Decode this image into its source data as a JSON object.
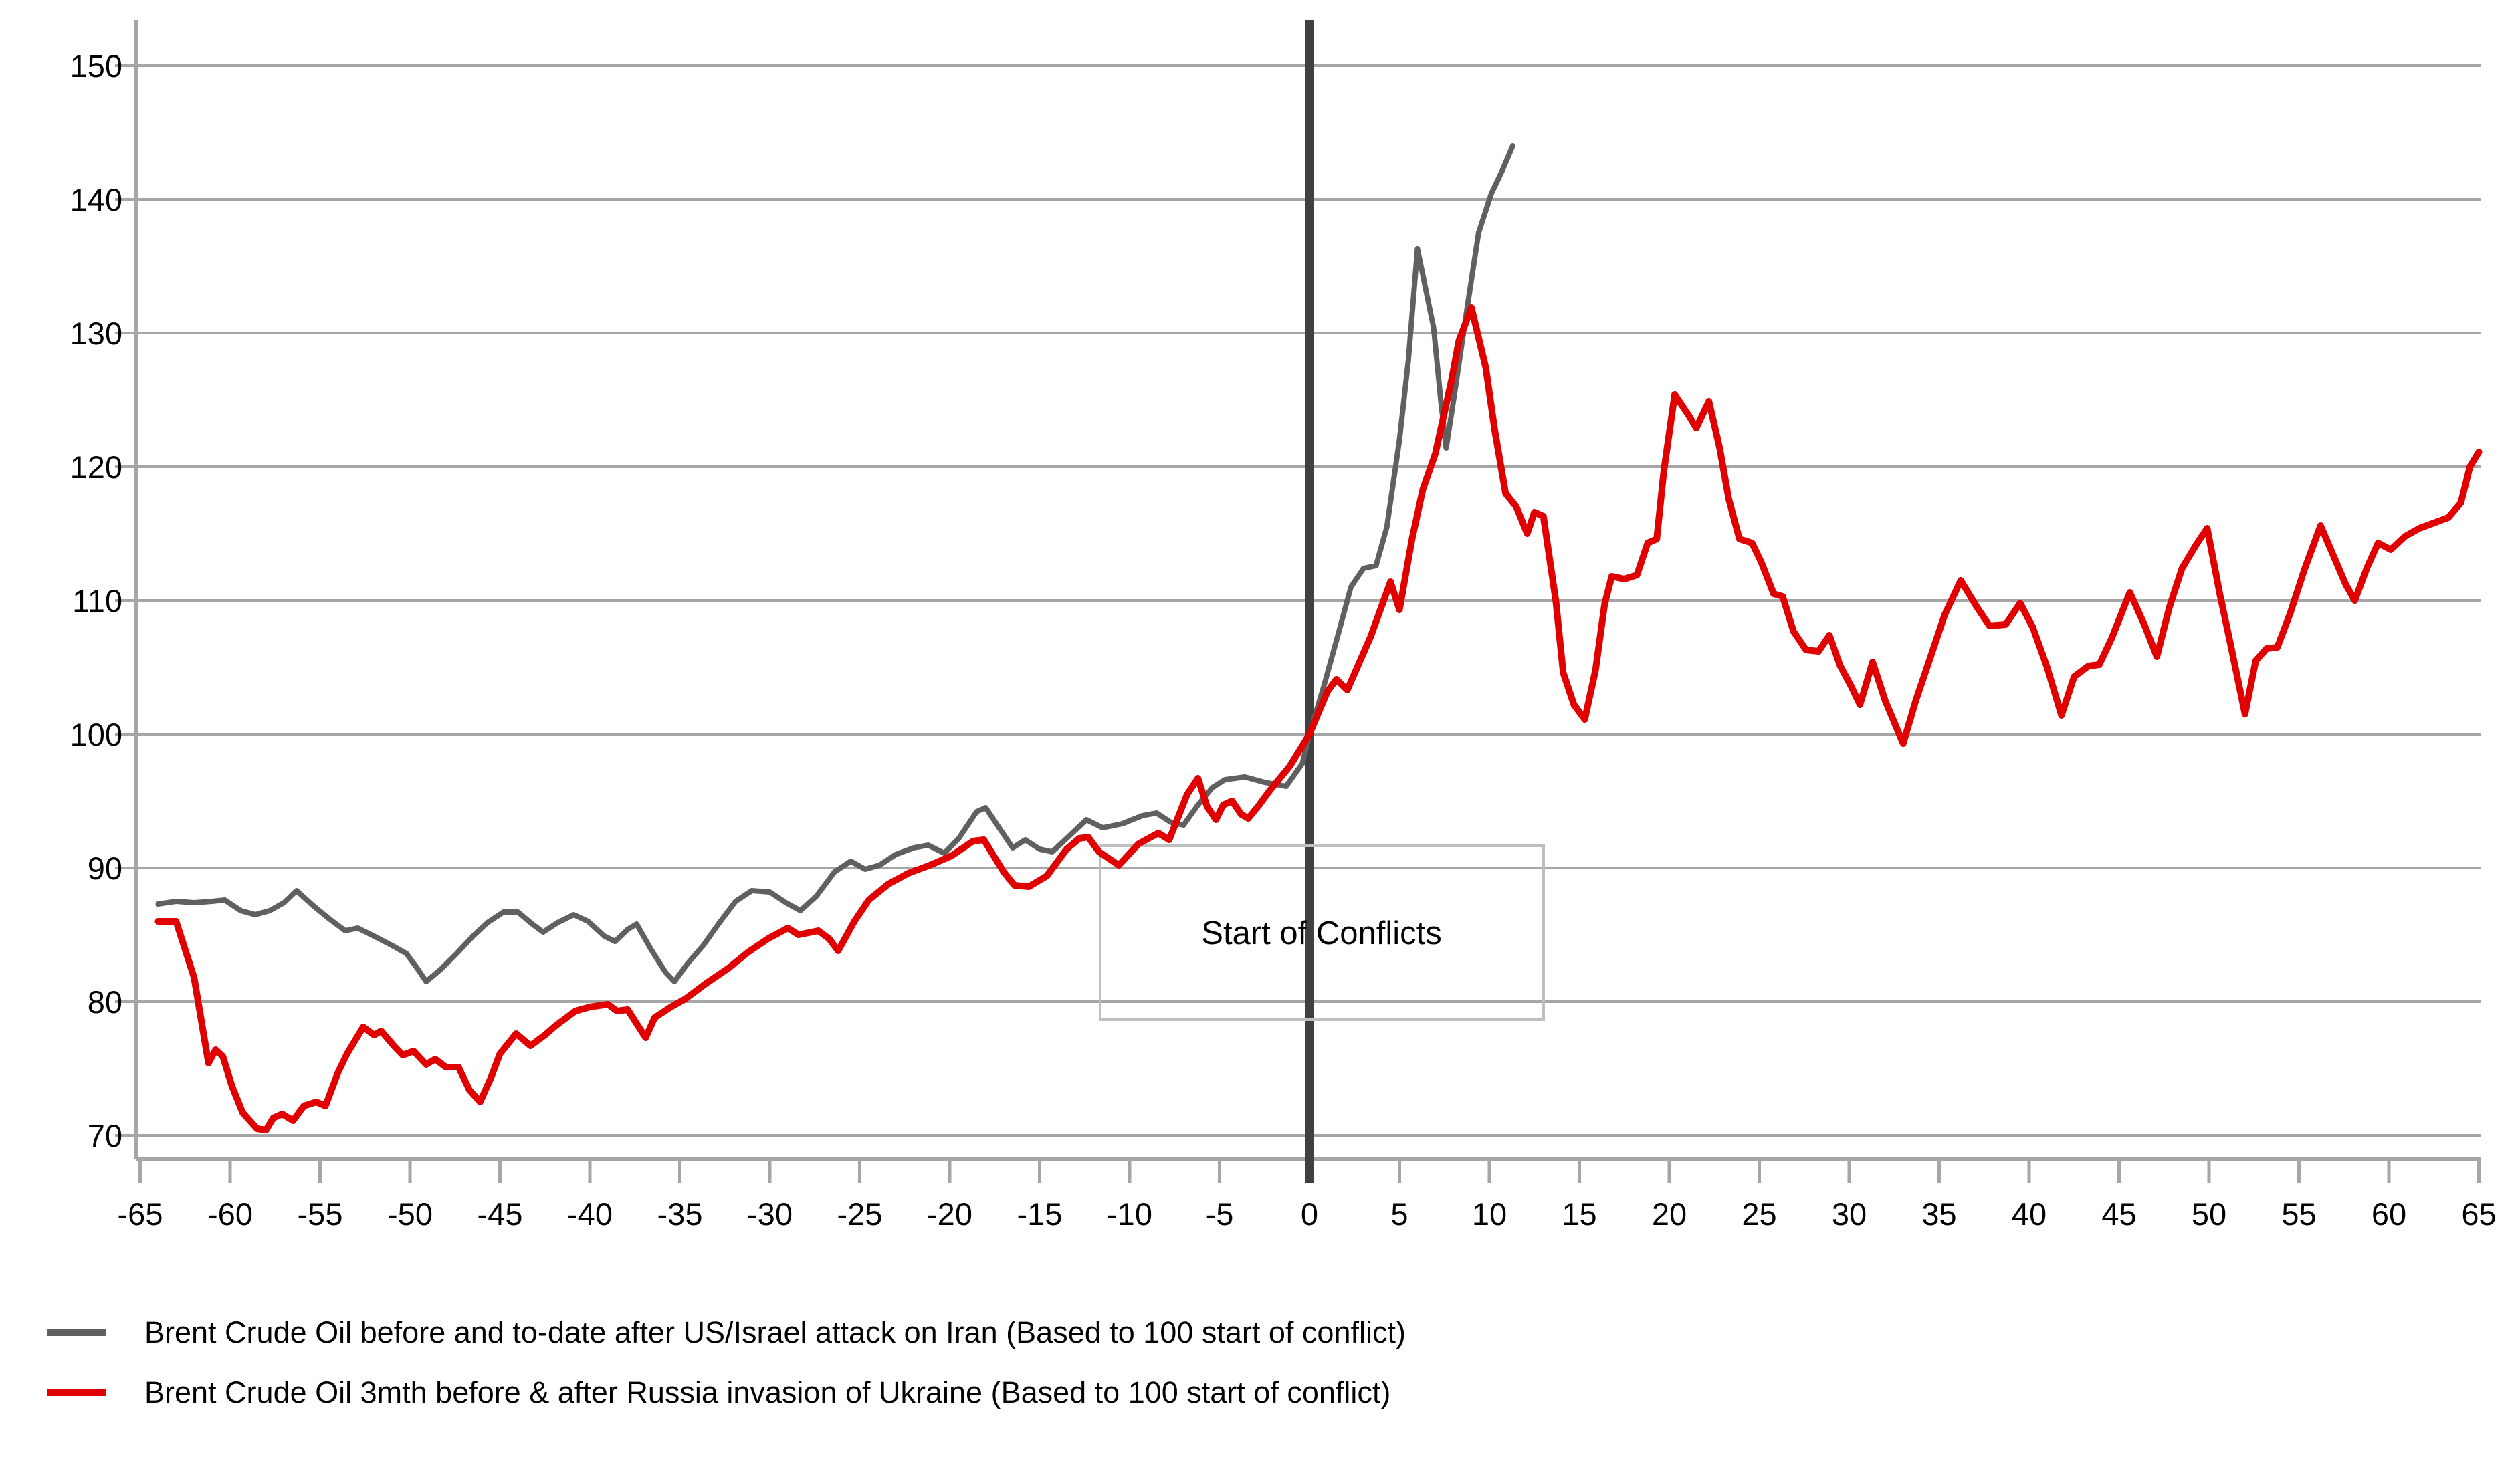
{
  "chart_data": {
    "type": "line",
    "title": "",
    "annotation": "Start of Conflicts",
    "x_ticks": [
      -65,
      -60,
      -55,
      -50,
      -45,
      -40,
      -35,
      -30,
      -25,
      -20,
      -15,
      -10,
      -5,
      0,
      5,
      10,
      15,
      20,
      25,
      30,
      35,
      40,
      45,
      50,
      55,
      60,
      65
    ],
    "y_ticks": [
      150,
      140,
      130,
      120,
      110,
      100,
      90,
      80,
      70
    ],
    "ylim": [
      70,
      150
    ],
    "xlim": [
      -65,
      65
    ],
    "grid": true,
    "legend_position": "bottom-left",
    "grid_color": "#a6a6a6",
    "event_line_color": "#404040",
    "annotation_border_color": "#bfbfbf",
    "series": [
      {
        "name": "Brent Crude Oil before and to-date after US/Israel attack on Iran (Based to 100 start of conflict)",
        "color": "#606060",
        "points": [
          [
            -64,
            87.3
          ],
          [
            -63,
            87.5
          ],
          [
            -62,
            87.4
          ],
          [
            -61,
            87.5
          ],
          [
            -60.3,
            87.6
          ],
          [
            -59.4,
            86.8
          ],
          [
            -58.6,
            86.5
          ],
          [
            -57.8,
            86.8
          ],
          [
            -57,
            87.4
          ],
          [
            -56.3,
            88.3
          ],
          [
            -55.4,
            87.2
          ],
          [
            -54.5,
            86.2
          ],
          [
            -53.6,
            85.3
          ],
          [
            -52.9,
            85.5
          ],
          [
            -52,
            84.9
          ],
          [
            -51,
            84.2
          ],
          [
            -50.2,
            83.6
          ],
          [
            -49.6,
            82.5
          ],
          [
            -49.1,
            81.5
          ],
          [
            -48.3,
            82.4
          ],
          [
            -47.4,
            83.6
          ],
          [
            -46.5,
            84.9
          ],
          [
            -45.7,
            85.9
          ],
          [
            -44.8,
            86.7
          ],
          [
            -44,
            86.7
          ],
          [
            -43.2,
            85.8
          ],
          [
            -42.6,
            85.2
          ],
          [
            -41.8,
            85.9
          ],
          [
            -40.9,
            86.5
          ],
          [
            -40.1,
            86
          ],
          [
            -39.2,
            84.9
          ],
          [
            -38.6,
            84.5
          ],
          [
            -37.9,
            85.4
          ],
          [
            -37.4,
            85.8
          ],
          [
            -36.6,
            83.9
          ],
          [
            -35.8,
            82.2
          ],
          [
            -35.3,
            81.5
          ],
          [
            -34.6,
            82.8
          ],
          [
            -33.7,
            84.2
          ],
          [
            -32.8,
            85.9
          ],
          [
            -31.9,
            87.5
          ],
          [
            -31,
            88.3
          ],
          [
            -30,
            88.2
          ],
          [
            -29.1,
            87.4
          ],
          [
            -28.3,
            86.8
          ],
          [
            -27.4,
            87.9
          ],
          [
            -26.4,
            89.7
          ],
          [
            -25.5,
            90.5
          ],
          [
            -24.7,
            89.9
          ],
          [
            -23.9,
            90.2
          ],
          [
            -23,
            91
          ],
          [
            -22,
            91.5
          ],
          [
            -21.2,
            91.7
          ],
          [
            -20.3,
            91.1
          ],
          [
            -19.5,
            92.2
          ],
          [
            -18.5,
            94.2
          ],
          [
            -18,
            94.5
          ],
          [
            -17.3,
            93.1
          ],
          [
            -16.5,
            91.5
          ],
          [
            -15.8,
            92.1
          ],
          [
            -15,
            91.4
          ],
          [
            -14.3,
            91.2
          ],
          [
            -13.5,
            92.2
          ],
          [
            -12.4,
            93.6
          ],
          [
            -11.5,
            93
          ],
          [
            -10.4,
            93.3
          ],
          [
            -9.3,
            93.9
          ],
          [
            -8.5,
            94.1
          ],
          [
            -7.7,
            93.4
          ],
          [
            -7,
            93.2
          ],
          [
            -6.2,
            94.7
          ],
          [
            -5.4,
            96
          ],
          [
            -4.7,
            96.6
          ],
          [
            -3.6,
            96.8
          ],
          [
            -2.5,
            96.4
          ],
          [
            -1.3,
            96.1
          ],
          [
            -0.4,
            97.8
          ],
          [
            0,
            100
          ],
          [
            0.8,
            103.6
          ],
          [
            1.6,
            107.5
          ],
          [
            2.3,
            111
          ],
          [
            3,
            112.4
          ],
          [
            3.7,
            112.6
          ],
          [
            4.3,
            115.5
          ],
          [
            5,
            122
          ],
          [
            5.5,
            128
          ],
          [
            6,
            136.3
          ],
          [
            6.9,
            130.4
          ],
          [
            7.3,
            124.9
          ],
          [
            7.6,
            121.4
          ],
          [
            8.1,
            125.8
          ],
          [
            8.8,
            132.2
          ],
          [
            9.4,
            137.5
          ],
          [
            10.1,
            140.4
          ],
          [
            10.7,
            142.1
          ],
          [
            11.3,
            144
          ]
        ]
      },
      {
        "name": "Brent Crude Oil 3mth before & after Russia invasion of Ukraine (Based to 100 start of conflict)",
        "color": "#e10000",
        "points": [
          [
            -64,
            86
          ],
          [
            -63,
            86
          ],
          [
            -62,
            81.8
          ],
          [
            -61.2,
            75.4
          ],
          [
            -60.8,
            76.4
          ],
          [
            -60.4,
            75.9
          ],
          [
            -59.9,
            73.7
          ],
          [
            -59.3,
            71.7
          ],
          [
            -58.5,
            70.5
          ],
          [
            -58,
            70.4
          ],
          [
            -57.6,
            71.3
          ],
          [
            -57.1,
            71.6
          ],
          [
            -56.5,
            71.1
          ],
          [
            -55.9,
            72.2
          ],
          [
            -55.2,
            72.5
          ],
          [
            -54.7,
            72.2
          ],
          [
            -54,
            74.7
          ],
          [
            -53.5,
            76.1
          ],
          [
            -52.6,
            78.1
          ],
          [
            -52,
            77.5
          ],
          [
            -51.6,
            77.8
          ],
          [
            -50.9,
            76.7
          ],
          [
            -50.4,
            76
          ],
          [
            -49.8,
            76.3
          ],
          [
            -49.1,
            75.3
          ],
          [
            -48.6,
            75.7
          ],
          [
            -48,
            75.1
          ],
          [
            -47.3,
            75.1
          ],
          [
            -46.7,
            73.4
          ],
          [
            -46.1,
            72.5
          ],
          [
            -45.5,
            74.3
          ],
          [
            -45,
            76.1
          ],
          [
            -44.1,
            77.6
          ],
          [
            -43.3,
            76.7
          ],
          [
            -42.5,
            77.5
          ],
          [
            -41.9,
            78.2
          ],
          [
            -40.8,
            79.3
          ],
          [
            -40,
            79.6
          ],
          [
            -39,
            79.8
          ],
          [
            -38.5,
            79.3
          ],
          [
            -37.9,
            79.4
          ],
          [
            -36.9,
            77.3
          ],
          [
            -36.4,
            78.8
          ],
          [
            -35.5,
            79.6
          ],
          [
            -34.7,
            80.2
          ],
          [
            -33.5,
            81.4
          ],
          [
            -32.3,
            82.5
          ],
          [
            -31.2,
            83.7
          ],
          [
            -30.1,
            84.7
          ],
          [
            -29,
            85.5
          ],
          [
            -28.4,
            85
          ],
          [
            -27.3,
            85.3
          ],
          [
            -26.7,
            84.7
          ],
          [
            -26.2,
            83.8
          ],
          [
            -25.3,
            86
          ],
          [
            -24.5,
            87.6
          ],
          [
            -23.4,
            88.8
          ],
          [
            -22.3,
            89.6
          ],
          [
            -21.1,
            90.2
          ],
          [
            -19.9,
            90.9
          ],
          [
            -18.7,
            92
          ],
          [
            -18.1,
            92.1
          ],
          [
            -17,
            89.7
          ],
          [
            -16.4,
            88.7
          ],
          [
            -15.6,
            88.6
          ],
          [
            -14.6,
            89.4
          ],
          [
            -13.5,
            91.4
          ],
          [
            -12.8,
            92.2
          ],
          [
            -12.3,
            92.3
          ],
          [
            -11.7,
            91.2
          ],
          [
            -10.6,
            90.2
          ],
          [
            -9.5,
            91.8
          ],
          [
            -8.4,
            92.6
          ],
          [
            -7.8,
            92.1
          ],
          [
            -6.8,
            95.5
          ],
          [
            -6.2,
            96.7
          ],
          [
            -5.7,
            94.6
          ],
          [
            -5.2,
            93.6
          ],
          [
            -4.8,
            94.7
          ],
          [
            -4.3,
            95
          ],
          [
            -3.8,
            94
          ],
          [
            -3.4,
            93.7
          ],
          [
            -2.8,
            94.7
          ],
          [
            -2.2,
            95.8
          ],
          [
            -1.1,
            97.6
          ],
          [
            0,
            100
          ],
          [
            1,
            103.2
          ],
          [
            1.5,
            104.1
          ],
          [
            2.1,
            103.3
          ],
          [
            3.4,
            107.3
          ],
          [
            4.5,
            111.4
          ],
          [
            5,
            109.3
          ],
          [
            5.7,
            114.6
          ],
          [
            6.3,
            118.3
          ],
          [
            7,
            121
          ],
          [
            7.9,
            126.5
          ],
          [
            8.3,
            129.4
          ],
          [
            9,
            131.9
          ],
          [
            9.8,
            127.4
          ],
          [
            10.3,
            122.7
          ],
          [
            10.9,
            118
          ],
          [
            11.5,
            117
          ],
          [
            12.1,
            115
          ],
          [
            12.5,
            116.6
          ],
          [
            13,
            116.3
          ],
          [
            13.7,
            109.9
          ],
          [
            14.1,
            104.6
          ],
          [
            14.7,
            102.2
          ],
          [
            15.3,
            101.1
          ],
          [
            15.9,
            104.8
          ],
          [
            16.4,
            109.7
          ],
          [
            16.8,
            111.8
          ],
          [
            17.5,
            111.6
          ],
          [
            18.2,
            111.9
          ],
          [
            18.8,
            114.3
          ],
          [
            19.3,
            114.6
          ],
          [
            19.7,
            119.7
          ],
          [
            20.3,
            125.4
          ],
          [
            21.1,
            123.8
          ],
          [
            21.5,
            122.9
          ],
          [
            22.2,
            124.9
          ],
          [
            22.8,
            121.4
          ],
          [
            23.3,
            117.6
          ],
          [
            23.9,
            114.6
          ],
          [
            24.6,
            114.3
          ],
          [
            25.1,
            112.9
          ],
          [
            25.8,
            110.5
          ],
          [
            26.3,
            110.3
          ],
          [
            26.9,
            107.7
          ],
          [
            27.6,
            106.3
          ],
          [
            28.3,
            106.2
          ],
          [
            28.9,
            107.4
          ],
          [
            29.5,
            105.1
          ],
          [
            30.1,
            103.6
          ],
          [
            30.6,
            102.2
          ],
          [
            31.3,
            105.4
          ],
          [
            32,
            102.5
          ],
          [
            33,
            99.3
          ],
          [
            33.7,
            102.5
          ],
          [
            34.4,
            105.3
          ],
          [
            35.3,
            108.9
          ],
          [
            36.2,
            111.5
          ],
          [
            37.1,
            109.5
          ],
          [
            37.8,
            108.1
          ],
          [
            38.7,
            108.2
          ],
          [
            39.5,
            109.8
          ],
          [
            40.2,
            108
          ],
          [
            41,
            105
          ],
          [
            41.8,
            101.4
          ],
          [
            42.5,
            104.3
          ],
          [
            43.3,
            105.1
          ],
          [
            43.9,
            105.2
          ],
          [
            44.6,
            107.2
          ],
          [
            45.6,
            110.6
          ],
          [
            46.4,
            108.2
          ],
          [
            47.1,
            105.8
          ],
          [
            47.8,
            109.5
          ],
          [
            48.5,
            112.4
          ],
          [
            49.3,
            114.2
          ],
          [
            49.9,
            115.4
          ],
          [
            50.6,
            110.5
          ],
          [
            51.2,
            106.7
          ],
          [
            52,
            101.5
          ],
          [
            52.6,
            105.5
          ],
          [
            53.2,
            106.4
          ],
          [
            53.8,
            106.5
          ],
          [
            54.5,
            109
          ],
          [
            55.3,
            112.3
          ],
          [
            56.2,
            115.6
          ],
          [
            56.9,
            113.4
          ],
          [
            57.6,
            111.2
          ],
          [
            58.1,
            110
          ],
          [
            58.8,
            112.5
          ],
          [
            59.4,
            114.3
          ],
          [
            60.1,
            113.8
          ],
          [
            60.9,
            114.8
          ],
          [
            61.7,
            115.4
          ],
          [
            62.5,
            115.8
          ],
          [
            63.3,
            116.2
          ],
          [
            64,
            117.3
          ],
          [
            64.5,
            120
          ],
          [
            65,
            121.1
          ]
        ]
      }
    ]
  },
  "legend": {
    "items": [
      {
        "label": "Brent Crude Oil before and to-date after US/Israel attack on Iran (Based to 100 start of conflict)"
      },
      {
        "label": "Brent Crude Oil 3mth before & after Russia invasion of Ukraine (Based to 100 start of conflict)"
      }
    ]
  }
}
